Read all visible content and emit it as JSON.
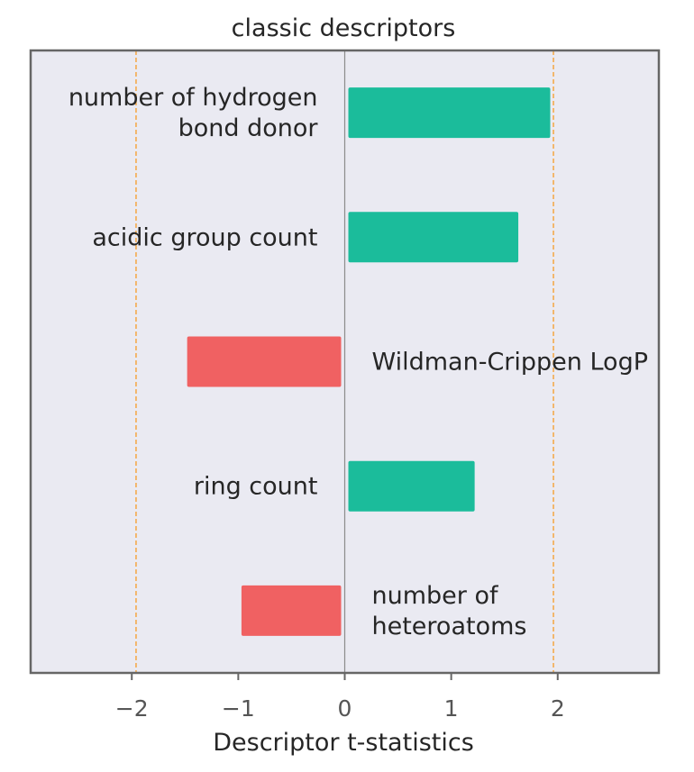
{
  "chart_data": {
    "type": "bar",
    "orientation": "horizontal",
    "title": "classic descriptors",
    "xlabel": "Descriptor t-statistics",
    "ylabel": "",
    "xlim": [
      -2.95,
      2.95
    ],
    "xticks": [
      -2,
      -1,
      0,
      1,
      2
    ],
    "xtick_labels": [
      "−2",
      "−1",
      "0",
      "1",
      "2"
    ],
    "grid": false,
    "reference_lines": [
      -1.96,
      1.96
    ],
    "categories": [
      "number of hydrogen\nbond donor",
      "acidic group count",
      "Wildman-Crippen LogP",
      "ring count",
      "number of\nheteroatoms"
    ],
    "values": [
      1.93,
      1.63,
      -1.48,
      1.22,
      -0.97
    ]
  },
  "colors": {
    "positive": "#1bbc9b",
    "negative": "#f06162",
    "reference_line": "#f5a742",
    "zero_line": "#8c8c8c",
    "plot_background": "#eaeaf2",
    "frame": "#666666",
    "text": "#262626",
    "tick_text": "#555555"
  }
}
